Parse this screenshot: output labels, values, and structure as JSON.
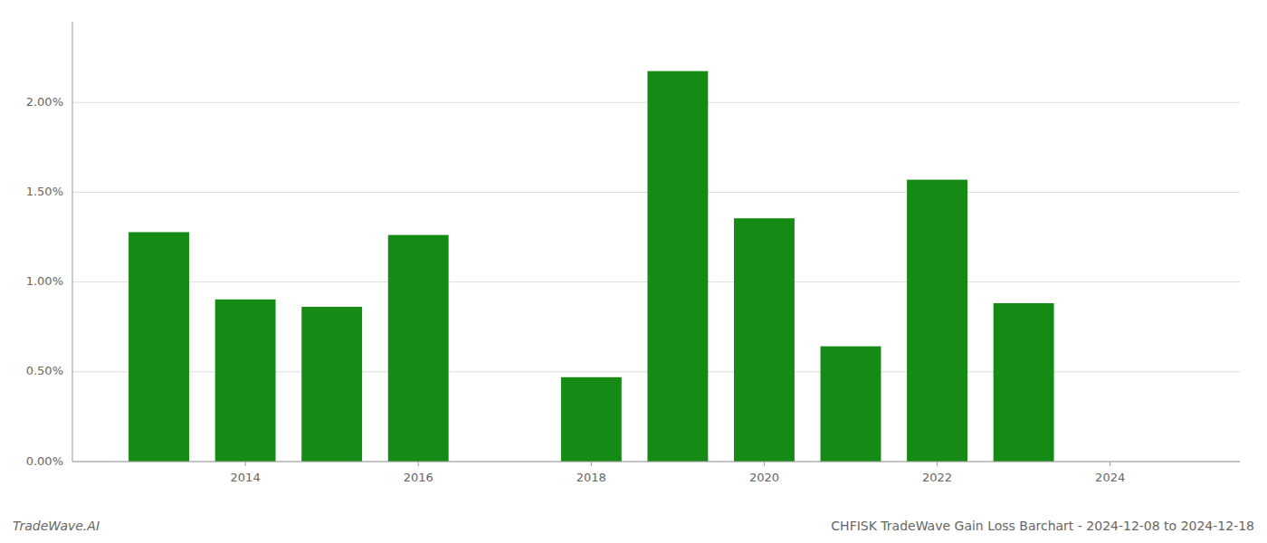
{
  "chart_data": {
    "type": "bar",
    "title": "CHFISK TradeWave Gain Loss Barchart - 2024-12-08 to 2024-12-18",
    "annotations": [
      "TradeWave.AI"
    ],
    "x": [
      2013,
      2014,
      2015,
      2016,
      2018,
      2019,
      2020,
      2021,
      2022,
      2023
    ],
    "values": [
      0.01278,
      0.00903,
      0.00862,
      0.01262,
      0.0047,
      0.02175,
      0.01355,
      0.00642,
      0.0157,
      0.00882
    ],
    "color": "#158a15",
    "xlim": [
      2012.0,
      2025.5
    ],
    "xticks": [
      2014,
      2016,
      2018,
      2020,
      2022,
      2024
    ],
    "ylim": [
      0.0,
      0.0245
    ],
    "yticks": [
      {
        "value": 0.0,
        "label": "0.00%"
      },
      {
        "value": 0.005,
        "label": "0.50%"
      },
      {
        "value": 0.01,
        "label": "1.00%"
      },
      {
        "value": 0.015,
        "label": "1.50%"
      },
      {
        "value": 0.02,
        "label": "2.00%"
      }
    ],
    "grid": true
  }
}
